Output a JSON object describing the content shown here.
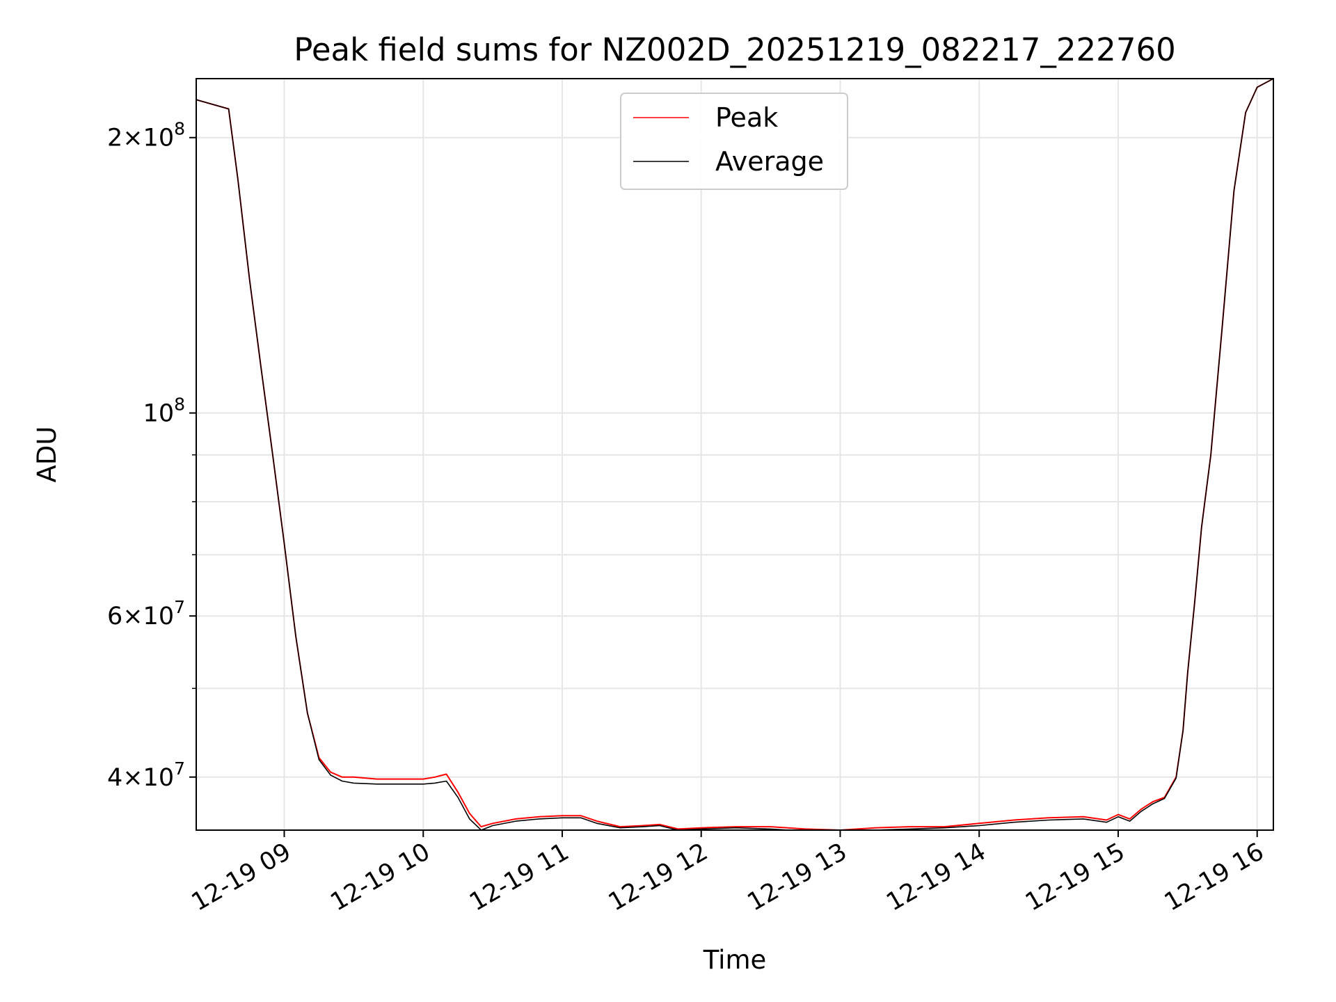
{
  "chart_data": {
    "type": "line",
    "title": "Peak field sums for NZ002D_20251219_082217_222760",
    "xlabel": "Time",
    "ylabel": "ADU",
    "y_scale": "log",
    "xlim": [
      "2025-12-19 08:22",
      "2025-12-19 16:07"
    ],
    "ylim": [
      35000000,
      232000000
    ],
    "x_ticks": [
      {
        "label": "12-19 09",
        "value": "2025-12-19 09:00"
      },
      {
        "label": "12-19 10",
        "value": "2025-12-19 10:00"
      },
      {
        "label": "12-19 11",
        "value": "2025-12-19 11:00"
      },
      {
        "label": "12-19 12",
        "value": "2025-12-19 12:00"
      },
      {
        "label": "12-19 13",
        "value": "2025-12-19 13:00"
      },
      {
        "label": "12-19 14",
        "value": "2025-12-19 14:00"
      },
      {
        "label": "12-19 15",
        "value": "2025-12-19 15:00"
      },
      {
        "label": "12-19 16",
        "value": "2025-12-19 16:00"
      }
    ],
    "y_ticks": [
      {
        "value": 40000000,
        "mant": "4",
        "exp": "7"
      },
      {
        "value": 60000000,
        "mant": "6",
        "exp": "7"
      },
      {
        "value": 100000000,
        "mant": "",
        "exp": "8"
      },
      {
        "value": 200000000,
        "mant": "2",
        "exp": "8"
      }
    ],
    "y_minor_ticks": [
      50000000,
      70000000,
      80000000,
      90000000
    ],
    "grid": true,
    "legend_position": "top-center",
    "series": [
      {
        "name": "Peak",
        "color": "#ff0000",
        "x": [
          "2025-12-19 08:22",
          "2025-12-19 08:36",
          "2025-12-19 08:40",
          "2025-12-19 08:45",
          "2025-12-19 08:50",
          "2025-12-19 08:55",
          "2025-12-19 09:00",
          "2025-12-19 09:05",
          "2025-12-19 09:10",
          "2025-12-19 09:15",
          "2025-12-19 09:20",
          "2025-12-19 09:25",
          "2025-12-19 09:30",
          "2025-12-19 09:40",
          "2025-12-19 09:50",
          "2025-12-19 10:00",
          "2025-12-19 10:05",
          "2025-12-19 10:10",
          "2025-12-19 10:15",
          "2025-12-19 10:20",
          "2025-12-19 10:25",
          "2025-12-19 10:30",
          "2025-12-19 10:40",
          "2025-12-19 10:50",
          "2025-12-19 11:00",
          "2025-12-19 11:08",
          "2025-12-19 11:15",
          "2025-12-19 11:25",
          "2025-12-19 11:35",
          "2025-12-19 11:42",
          "2025-12-19 11:50",
          "2025-12-19 12:00",
          "2025-12-19 12:15",
          "2025-12-19 12:30",
          "2025-12-19 12:45",
          "2025-12-19 13:00",
          "2025-12-19 13:15",
          "2025-12-19 13:30",
          "2025-12-19 13:45",
          "2025-12-19 14:00",
          "2025-12-19 14:15",
          "2025-12-19 14:30",
          "2025-12-19 14:45",
          "2025-12-19 14:55",
          "2025-12-19 15:00",
          "2025-12-19 15:05",
          "2025-12-19 15:10",
          "2025-12-19 15:15",
          "2025-12-19 15:20",
          "2025-12-19 15:25",
          "2025-12-19 15:28",
          "2025-12-19 15:30",
          "2025-12-19 15:33",
          "2025-12-19 15:36",
          "2025-12-19 15:40",
          "2025-12-19 15:45",
          "2025-12-19 15:50",
          "2025-12-19 15:55",
          "2025-12-19 16:00",
          "2025-12-19 16:07"
        ],
        "y": [
          220000000,
          215000000,
          180000000,
          140000000,
          112000000,
          90000000,
          72000000,
          57000000,
          47000000,
          42000000,
          40500000,
          40000000,
          40000000,
          39800000,
          39800000,
          39800000,
          40000000,
          40300000,
          38500000,
          36500000,
          35300000,
          35600000,
          36000000,
          36200000,
          36300000,
          36300000,
          35800000,
          35300000,
          35400000,
          35500000,
          35100000,
          35200000,
          35300000,
          35300000,
          35100000,
          35000000,
          35200000,
          35300000,
          35300000,
          35600000,
          35900000,
          36100000,
          36200000,
          35900000,
          36400000,
          36000000,
          36900000,
          37600000,
          38000000,
          40000000,
          45000000,
          52000000,
          62000000,
          75000000,
          90000000,
          125000000,
          175000000,
          213000000,
          227000000,
          232000000
        ]
      },
      {
        "name": "Average",
        "color": "#000000",
        "x": [
          "2025-12-19 08:22",
          "2025-12-19 08:36",
          "2025-12-19 08:40",
          "2025-12-19 08:45",
          "2025-12-19 08:50",
          "2025-12-19 08:55",
          "2025-12-19 09:00",
          "2025-12-19 09:05",
          "2025-12-19 09:10",
          "2025-12-19 09:15",
          "2025-12-19 09:20",
          "2025-12-19 09:25",
          "2025-12-19 09:30",
          "2025-12-19 09:40",
          "2025-12-19 09:50",
          "2025-12-19 10:00",
          "2025-12-19 10:05",
          "2025-12-19 10:10",
          "2025-12-19 10:15",
          "2025-12-19 10:20",
          "2025-12-19 10:25",
          "2025-12-19 10:30",
          "2025-12-19 10:40",
          "2025-12-19 10:50",
          "2025-12-19 11:00",
          "2025-12-19 11:08",
          "2025-12-19 11:15",
          "2025-12-19 11:25",
          "2025-12-19 11:35",
          "2025-12-19 11:42",
          "2025-12-19 11:50",
          "2025-12-19 12:00",
          "2025-12-19 12:15",
          "2025-12-19 12:30",
          "2025-12-19 12:45",
          "2025-12-19 13:00",
          "2025-12-19 13:15",
          "2025-12-19 13:30",
          "2025-12-19 13:45",
          "2025-12-19 14:00",
          "2025-12-19 14:15",
          "2025-12-19 14:30",
          "2025-12-19 14:45",
          "2025-12-19 14:55",
          "2025-12-19 15:00",
          "2025-12-19 15:05",
          "2025-12-19 15:10",
          "2025-12-19 15:15",
          "2025-12-19 15:20",
          "2025-12-19 15:25",
          "2025-12-19 15:28",
          "2025-12-19 15:30",
          "2025-12-19 15:33",
          "2025-12-19 15:36",
          "2025-12-19 15:40",
          "2025-12-19 15:45",
          "2025-12-19 15:50",
          "2025-12-19 15:55",
          "2025-12-19 16:00",
          "2025-12-19 16:07"
        ],
        "y": [
          220000000,
          215000000,
          180000000,
          140000000,
          112000000,
          90000000,
          72000000,
          57000000,
          47000000,
          41800000,
          40200000,
          39600000,
          39400000,
          39300000,
          39300000,
          39300000,
          39400000,
          39600000,
          38000000,
          36000000,
          35000000,
          35400000,
          35800000,
          36000000,
          36100000,
          36100000,
          35600000,
          35200000,
          35300000,
          35400000,
          35000000,
          35100000,
          35200000,
          35100000,
          34900000,
          34800000,
          35000000,
          35100000,
          35200000,
          35400000,
          35700000,
          35900000,
          36000000,
          35700000,
          36200000,
          35800000,
          36700000,
          37400000,
          37900000,
          39900000,
          45000000,
          52000000,
          62000000,
          75000000,
          90000000,
          125000000,
          175000000,
          213000000,
          227000000,
          232000000
        ]
      }
    ]
  }
}
